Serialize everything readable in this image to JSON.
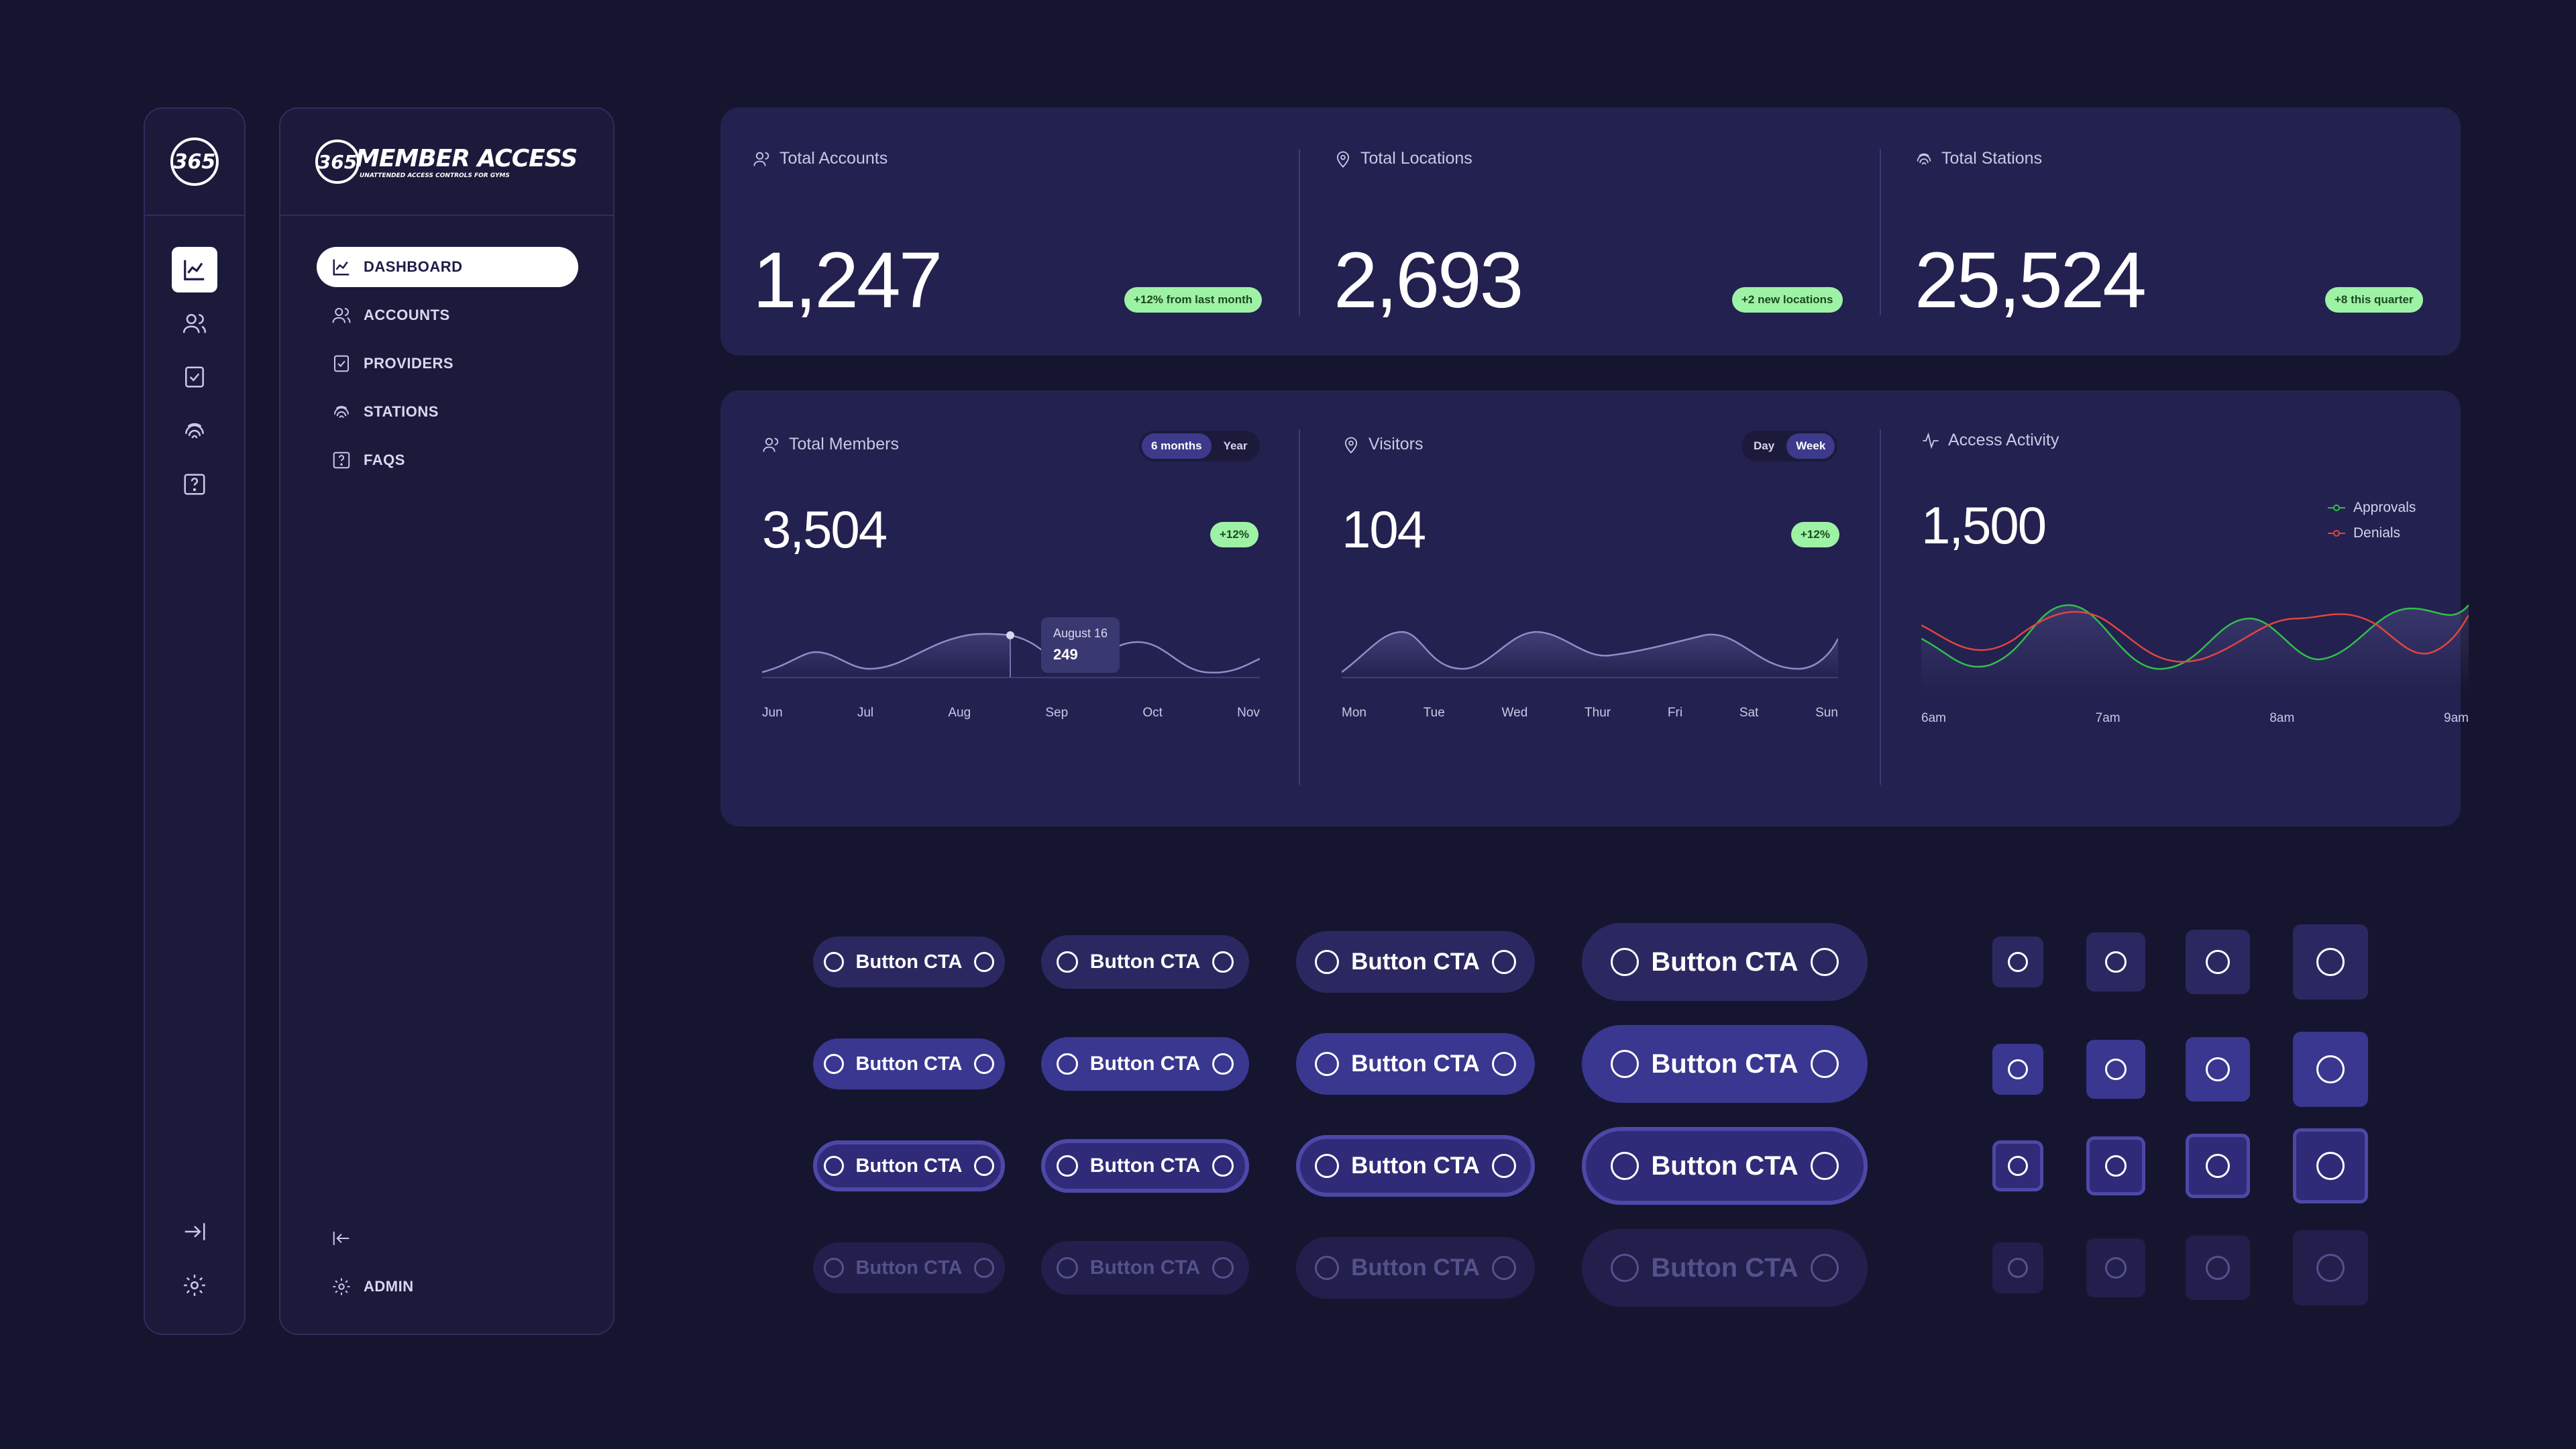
{
  "rail": {
    "logo_text": "365",
    "icons": [
      "chart-line-icon",
      "users-icon",
      "clipboard-check-icon",
      "fingerprint-icon",
      "help-square-icon"
    ],
    "bottom_icons": [
      "expand-icon",
      "gear-icon"
    ]
  },
  "sidebar": {
    "brand_logo": "365",
    "brand_name": "MEMBER ACCESS",
    "brand_tagline": "UNATTENDED ACCESS CONTROLS FOR GYMS",
    "items": [
      {
        "label": "DASHBOARD",
        "icon": "chart-line-icon",
        "active": true
      },
      {
        "label": "ACCOUNTS",
        "icon": "users-icon",
        "active": false
      },
      {
        "label": "PROVIDERS",
        "icon": "clipboard-check-icon",
        "active": false
      },
      {
        "label": "STATIONS",
        "icon": "fingerprint-icon",
        "active": false
      },
      {
        "label": "FAQS",
        "icon": "help-square-icon",
        "active": false
      }
    ],
    "collapse_icon": "collapse-icon",
    "admin_label": "ADMIN"
  },
  "stats": {
    "accounts": {
      "label": "Total Accounts",
      "value": "1,247",
      "badge": "+12% from last month"
    },
    "locations": {
      "label": "Total Locations",
      "value": "2,693",
      "badge": "+2 new locations"
    },
    "stations": {
      "label": "Total Stations",
      "value": "25,524",
      "badge": "+8 this quarter"
    }
  },
  "members": {
    "label": "Total Members",
    "value": "3,504",
    "badge": "+12%",
    "toggle": [
      "6 months",
      "Year"
    ],
    "toggle_active": "6 months",
    "x_labels": [
      "Jun",
      "Jul",
      "Aug",
      "Sep",
      "Oct",
      "Nov"
    ],
    "tooltip": {
      "date": "August 16",
      "value": "249"
    }
  },
  "visitors": {
    "label": "Visitors",
    "value": "104",
    "badge": "+12%",
    "toggle": [
      "Day",
      "Week"
    ],
    "toggle_active": "Week",
    "x_labels": [
      "Mon",
      "Tue",
      "Wed",
      "Thur",
      "Fri",
      "Sat",
      "Sun"
    ]
  },
  "activity": {
    "label": "Access Activity",
    "value": "1,500",
    "legend": [
      {
        "name": "Approvals",
        "color": "#2fbf4a"
      },
      {
        "name": "Denials",
        "color": "#e0453f"
      }
    ],
    "x_labels": [
      "6am",
      "7am",
      "8am",
      "9am"
    ]
  },
  "buttons": {
    "label": "Button CTA"
  },
  "colors": {
    "background": "#16152f",
    "card": "#23214f",
    "badge": "#9ef2a5",
    "accent": "#3a3790"
  }
}
